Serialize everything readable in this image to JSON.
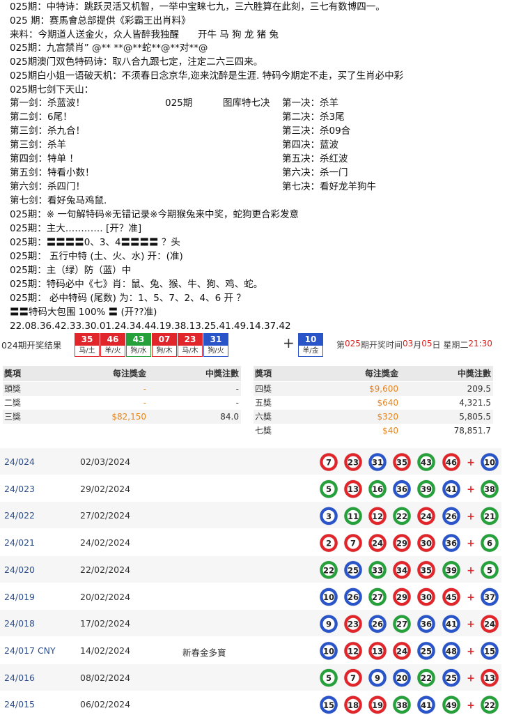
{
  "lines_top": [
    "025期：中特诗：跳跃灵活又机智，一举中宝睐七九，三六胜算在此刻，三七有数博四一。",
    "025 期：赛馬會总部提供《彩霸王出肖料》",
    "来料：今期道人送金火，众人皆醉我独醒　　开牛 马 狗 龙 猪 兔",
    "025期：九宫禁肖”  @** **@**蛇**@**对**@",
    "025期澳门双色特码诗：取八合九跟七定，注定二六三四来。",
    "025期白小姐一语破天机：不须春日念京华,迩来沈醉是生涯. 特码今期定不走，买了生肖必中彩",
    "025期七剑下天山："
  ],
  "seven_swords": {
    "left": [
      "第一剑：杀蓝波！",
      "第二剑：6尾！",
      "第三剑：杀九合！",
      "第三剑：杀羊",
      "第四剑：特单 ！",
      "第五剑：特看小数！",
      "第六剑：杀四门！",
      "第七剑：看好兔马鸡鼠."
    ],
    "center_period": "025期",
    "center_title": "图库特七决",
    "right": [
      "第一决：杀羊",
      "第二决：杀3尾",
      "第三决：杀09合",
      "第四决：蓝波",
      "第五决：杀红波",
      "第六决：杀一门",
      "第七决：看好龙羊狗牛"
    ]
  },
  "lines_bottom": [
    "025期：※ 一句解特码※无错记录※今期猴兔来中奖，蛇狗更合彩发意",
    "025期：主大………… [开？准]",
    "025期：〓〓〓〓0、3、4〓〓〓〓 ？头",
    "025期：  五行中特  (土、火、水) 开：(准)",
    "025期：主（绿）防（蓝）中",
    "025期：特码必中《七》肖：鼠、兔、猴、牛、狗、鸡、蛇。",
    "025期：  必中特码 (尾数) 为：1、5、7、2、4、6     开 ？",
    "〓〓特码大包围 100%  〓    (开??准)",
    "22.08.36.42.33.30.01.24.34.44.19.38.13.25.41.49.14.37.42"
  ],
  "result": {
    "label": "024期开奖结果",
    "balls": [
      {
        "num": "35",
        "zodiac": "马/土",
        "color": "red"
      },
      {
        "num": "46",
        "zodiac": "羊/火",
        "color": "red"
      },
      {
        "num": "43",
        "zodiac": "狗/水",
        "color": "green"
      },
      {
        "num": "07",
        "zodiac": "狗/木",
        "color": "red"
      },
      {
        "num": "23",
        "zodiac": "马/木",
        "color": "red"
      },
      {
        "num": "31",
        "zodiac": "狗/火",
        "color": "blue"
      }
    ],
    "plus": "+",
    "special": {
      "num": "10",
      "zodiac": "羊/金",
      "color": "blue"
    },
    "next": [
      "第",
      "025",
      "期开奖时间",
      "03",
      "月",
      "05",
      "日 星期二",
      "21:30"
    ]
  },
  "prize_table": {
    "headers": [
      "獎項",
      "每注獎金",
      "中獎注數"
    ],
    "left": [
      [
        "頭獎",
        "-",
        "-"
      ],
      [
        "二獎",
        "-",
        "-"
      ],
      [
        "三獎",
        "$82,150",
        "84.0"
      ]
    ],
    "right": [
      [
        "四獎",
        "$9,600",
        "209.5"
      ],
      [
        "五獎",
        "$640",
        "4,321.5"
      ],
      [
        "六獎",
        "$320",
        "5,805.5"
      ],
      [
        "七獎",
        "$40",
        "78,851.7"
      ]
    ]
  },
  "history": {
    "separator": "+",
    "rows": [
      {
        "id": "24/024",
        "date": "02/03/2024",
        "numbers": [
          "7",
          "23",
          "31",
          "35",
          "43",
          "46",
          "10"
        ],
        "colors": [
          "red",
          "red",
          "blue",
          "red",
          "green",
          "red",
          "blue"
        ]
      },
      {
        "id": "24/023",
        "date": "29/02/2024",
        "numbers": [
          "5",
          "13",
          "16",
          "36",
          "39",
          "41",
          "38"
        ],
        "colors": [
          "green",
          "red",
          "green",
          "blue",
          "green",
          "blue",
          "green"
        ]
      },
      {
        "id": "24/022",
        "date": "27/02/2024",
        "numbers": [
          "3",
          "11",
          "12",
          "22",
          "24",
          "26",
          "21"
        ],
        "colors": [
          "blue",
          "green",
          "red",
          "green",
          "red",
          "blue",
          "green"
        ]
      },
      {
        "id": "24/021",
        "date": "24/02/2024",
        "numbers": [
          "2",
          "7",
          "24",
          "29",
          "30",
          "36",
          "6"
        ],
        "colors": [
          "red",
          "red",
          "red",
          "red",
          "red",
          "blue",
          "green"
        ]
      },
      {
        "id": "24/020",
        "date": "22/02/2024",
        "numbers": [
          "22",
          "25",
          "33",
          "34",
          "35",
          "39",
          "5"
        ],
        "colors": [
          "green",
          "blue",
          "green",
          "red",
          "red",
          "green",
          "green"
        ]
      },
      {
        "id": "24/019",
        "date": "20/02/2024",
        "numbers": [
          "10",
          "26",
          "27",
          "29",
          "30",
          "45",
          "37"
        ],
        "colors": [
          "blue",
          "blue",
          "green",
          "red",
          "red",
          "red",
          "blue"
        ]
      },
      {
        "id": "24/018",
        "date": "17/02/2024",
        "numbers": [
          "9",
          "23",
          "26",
          "27",
          "36",
          "41",
          "24"
        ],
        "colors": [
          "blue",
          "red",
          "blue",
          "green",
          "blue",
          "blue",
          "red"
        ]
      },
      {
        "id": "24/017 CNY",
        "date": "14/02/2024",
        "note": "新春金多寶",
        "numbers": [
          "10",
          "12",
          "13",
          "24",
          "25",
          "48",
          "15"
        ],
        "colors": [
          "blue",
          "red",
          "red",
          "red",
          "blue",
          "blue",
          "blue"
        ]
      },
      {
        "id": "24/016",
        "date": "08/02/2024",
        "numbers": [
          "5",
          "7",
          "9",
          "20",
          "22",
          "25",
          "13"
        ],
        "colors": [
          "green",
          "red",
          "blue",
          "blue",
          "green",
          "blue",
          "red"
        ]
      },
      {
        "id": "24/015",
        "date": "06/02/2024",
        "numbers": [
          "15",
          "18",
          "19",
          "38",
          "41",
          "49",
          "22"
        ],
        "colors": [
          "blue",
          "red",
          "red",
          "green",
          "blue",
          "green",
          "green"
        ]
      }
    ]
  }
}
